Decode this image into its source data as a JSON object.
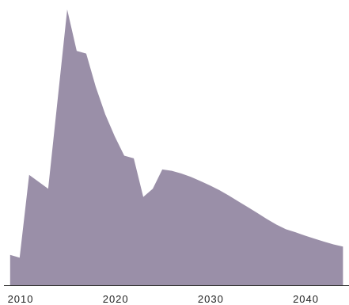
{
  "chart_data": {
    "type": "area",
    "title": "",
    "xlabel": "",
    "ylabel": "",
    "x": [
      2008.9,
      2009.9,
      2010.9,
      2012.9,
      2014.9,
      2015.9,
      2016.9,
      2017.9,
      2018.9,
      2019.9,
      2020.9,
      2021.9,
      2022.9,
      2023.9,
      2024.9,
      2025.9,
      2026.9,
      2027.9,
      2028.9,
      2029.9,
      2030.9,
      2031.9,
      2032.9,
      2033.9,
      2034.9,
      2035.9,
      2036.9,
      2037.9,
      2038.9,
      2039.9,
      2040.9,
      2041.9,
      2042.9,
      2043.9
    ],
    "series": [
      {
        "values": [
          11.0,
          10.0,
          40.0,
          35.0,
          100.0,
          85.0,
          84.0,
          72.0,
          62.0,
          54.0,
          47.0,
          46.0,
          32.0,
          35.0,
          42.0,
          41.5,
          40.5,
          39.3,
          37.8,
          36.2,
          34.5,
          32.5,
          30.4,
          28.3,
          26.2,
          24.0,
          22.0,
          20.3,
          19.2,
          18.0,
          16.9,
          15.8,
          14.8,
          14.0
        ]
      }
    ],
    "xlim": [
      2008.5,
      2044.2
    ],
    "ylim": [
      0,
      100
    ],
    "x_ticks": [
      "2010",
      "2020",
      "2030",
      "2040"
    ],
    "x_tick_values": [
      2010,
      2020,
      2030,
      2040
    ],
    "grid": false,
    "legend": "none",
    "fill_color": "#9a8fa8",
    "axis_color": "#333333"
  }
}
